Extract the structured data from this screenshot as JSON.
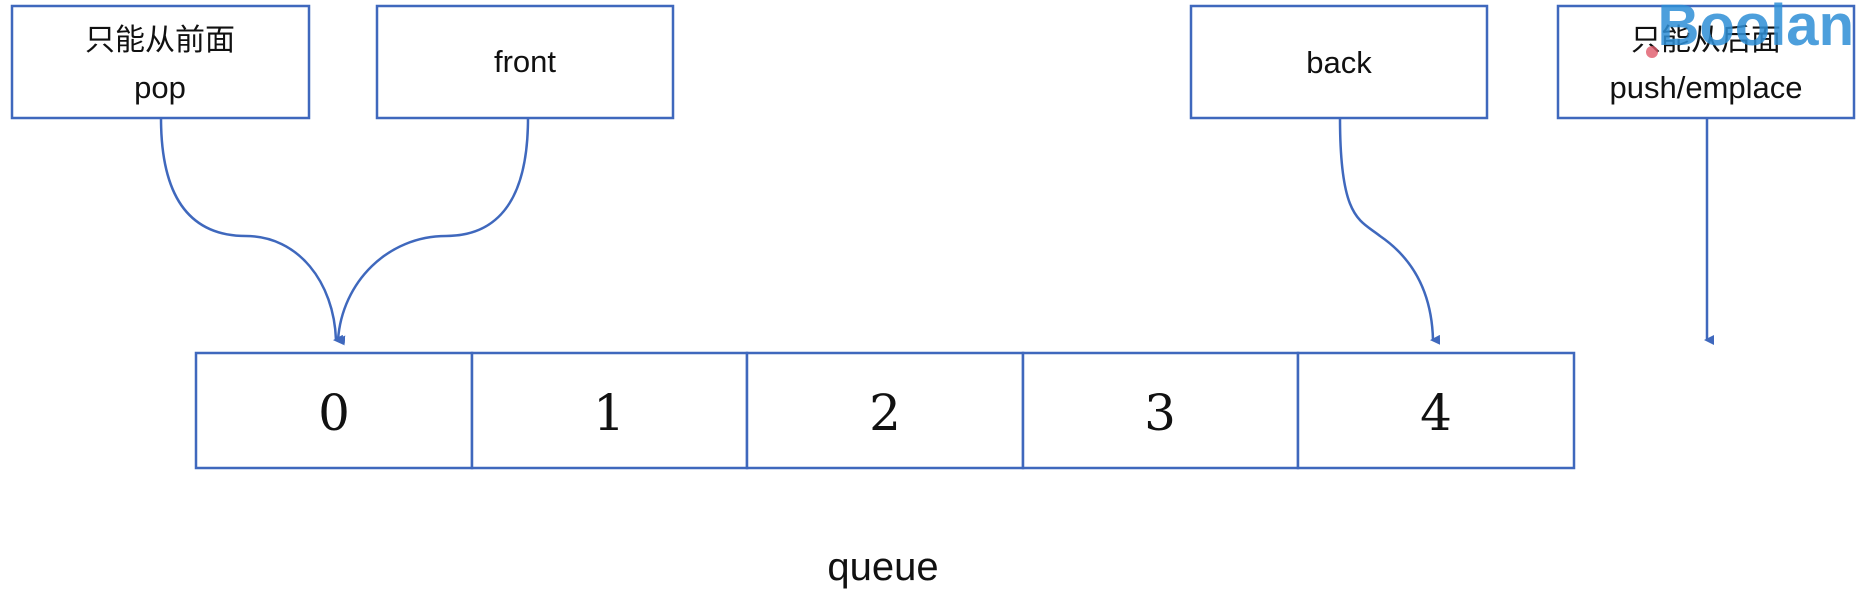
{
  "colors": {
    "stroke": "#3f68bd",
    "arrow": "#3f68bd",
    "text": "#111111",
    "watermark": "#2f8fd6"
  },
  "labels": {
    "pop_cn": "只能从前面",
    "pop": "pop",
    "front": "front",
    "back": "back",
    "push_cn": "只能从后面",
    "push": "push/emplace"
  },
  "cells": [
    "0",
    "1",
    "2",
    "3",
    "4"
  ],
  "caption": "queue",
  "watermark": "Boolan"
}
